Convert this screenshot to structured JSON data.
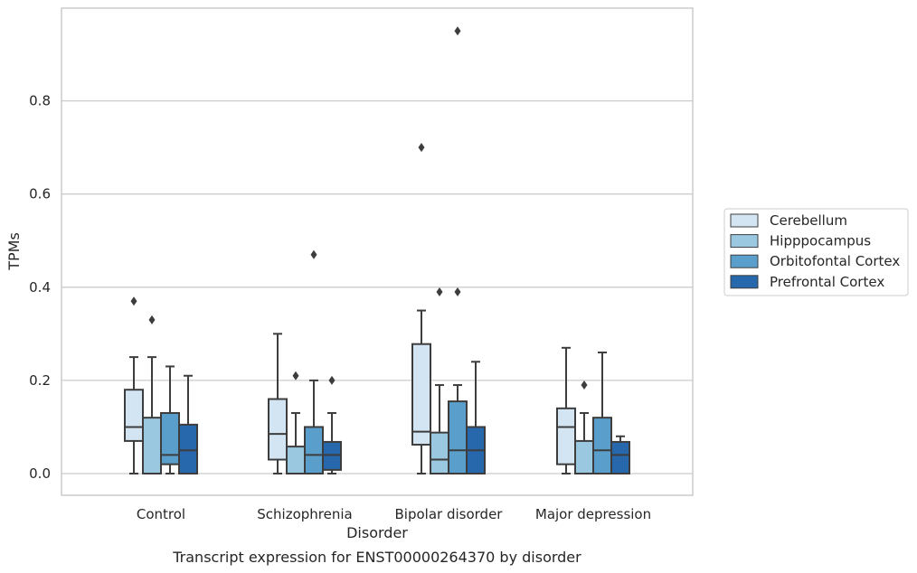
{
  "chart_data": {
    "type": "box",
    "caption": "Transcript expression for ENST00000264370 by disorder",
    "xlabel": "Disorder",
    "ylabel": "TPMs",
    "ylim": [
      -0.045,
      0.99
    ],
    "yticks": [
      "0.0",
      "0.2",
      "0.4",
      "0.6",
      "0.8"
    ],
    "ytick_values": [
      0.0,
      0.2,
      0.4,
      0.6,
      0.8
    ],
    "grid": "horizontal",
    "legend_position": "right",
    "categories": [
      "Control",
      "Schizophrenia",
      "Bipolar disorder",
      "Major depression"
    ],
    "series": [
      {
        "name": "Cerebellum",
        "color": "#d3e4f3",
        "boxes": [
          {
            "whislo": 0.0,
            "q1": 0.07,
            "med": 0.1,
            "q3": 0.18,
            "whishi": 0.25,
            "fliers": [
              0.37
            ]
          },
          {
            "whislo": 0.0,
            "q1": 0.03,
            "med": 0.085,
            "q3": 0.16,
            "whishi": 0.3,
            "fliers": []
          },
          {
            "whislo": 0.0,
            "q1": 0.062,
            "med": 0.09,
            "q3": 0.278,
            "whishi": 0.35,
            "fliers": [
              0.7
            ]
          },
          {
            "whislo": 0.0,
            "q1": 0.02,
            "med": 0.1,
            "q3": 0.14,
            "whishi": 0.27,
            "fliers": []
          }
        ]
      },
      {
        "name": "Hipppocampus",
        "color": "#9ac8e0",
        "boxes": [
          {
            "whislo": 0.0,
            "q1": 0.0,
            "med": 0.0,
            "q3": 0.12,
            "whishi": 0.25,
            "fliers": [
              0.33
            ]
          },
          {
            "whislo": 0.0,
            "q1": 0.0,
            "med": 0.0,
            "q3": 0.058,
            "whishi": 0.13,
            "fliers": [
              0.21
            ]
          },
          {
            "whislo": 0.0,
            "q1": 0.0,
            "med": 0.03,
            "q3": 0.088,
            "whishi": 0.19,
            "fliers": [
              0.39
            ]
          },
          {
            "whislo": 0.0,
            "q1": 0.0,
            "med": 0.0,
            "q3": 0.07,
            "whishi": 0.13,
            "fliers": [
              0.19
            ]
          }
        ]
      },
      {
        "name": "Orbitofontal Cortex",
        "color": "#5a9ecb",
        "boxes": [
          {
            "whislo": 0.0,
            "q1": 0.02,
            "med": 0.04,
            "q3": 0.13,
            "whishi": 0.23,
            "fliers": []
          },
          {
            "whislo": 0.0,
            "q1": 0.0,
            "med": 0.04,
            "q3": 0.1,
            "whishi": 0.2,
            "fliers": [
              0.47
            ]
          },
          {
            "whislo": 0.0,
            "q1": 0.0,
            "med": 0.05,
            "q3": 0.155,
            "whishi": 0.19,
            "fliers": [
              0.39,
              0.95
            ]
          },
          {
            "whislo": 0.0,
            "q1": 0.0,
            "med": 0.05,
            "q3": 0.12,
            "whishi": 0.26,
            "fliers": []
          }
        ]
      },
      {
        "name": "Prefrontal Cortex",
        "color": "#2767ab",
        "boxes": [
          {
            "whislo": 0.0,
            "q1": 0.0,
            "med": 0.05,
            "q3": 0.105,
            "whishi": 0.21,
            "fliers": []
          },
          {
            "whislo": 0.0,
            "q1": 0.008,
            "med": 0.04,
            "q3": 0.068,
            "whishi": 0.13,
            "fliers": [
              0.2
            ]
          },
          {
            "whislo": 0.0,
            "q1": 0.0,
            "med": 0.05,
            "q3": 0.1,
            "whishi": 0.24,
            "fliers": []
          },
          {
            "whislo": 0.0,
            "q1": 0.0,
            "med": 0.04,
            "q3": 0.068,
            "whishi": 0.08,
            "fliers": []
          }
        ]
      }
    ]
  }
}
